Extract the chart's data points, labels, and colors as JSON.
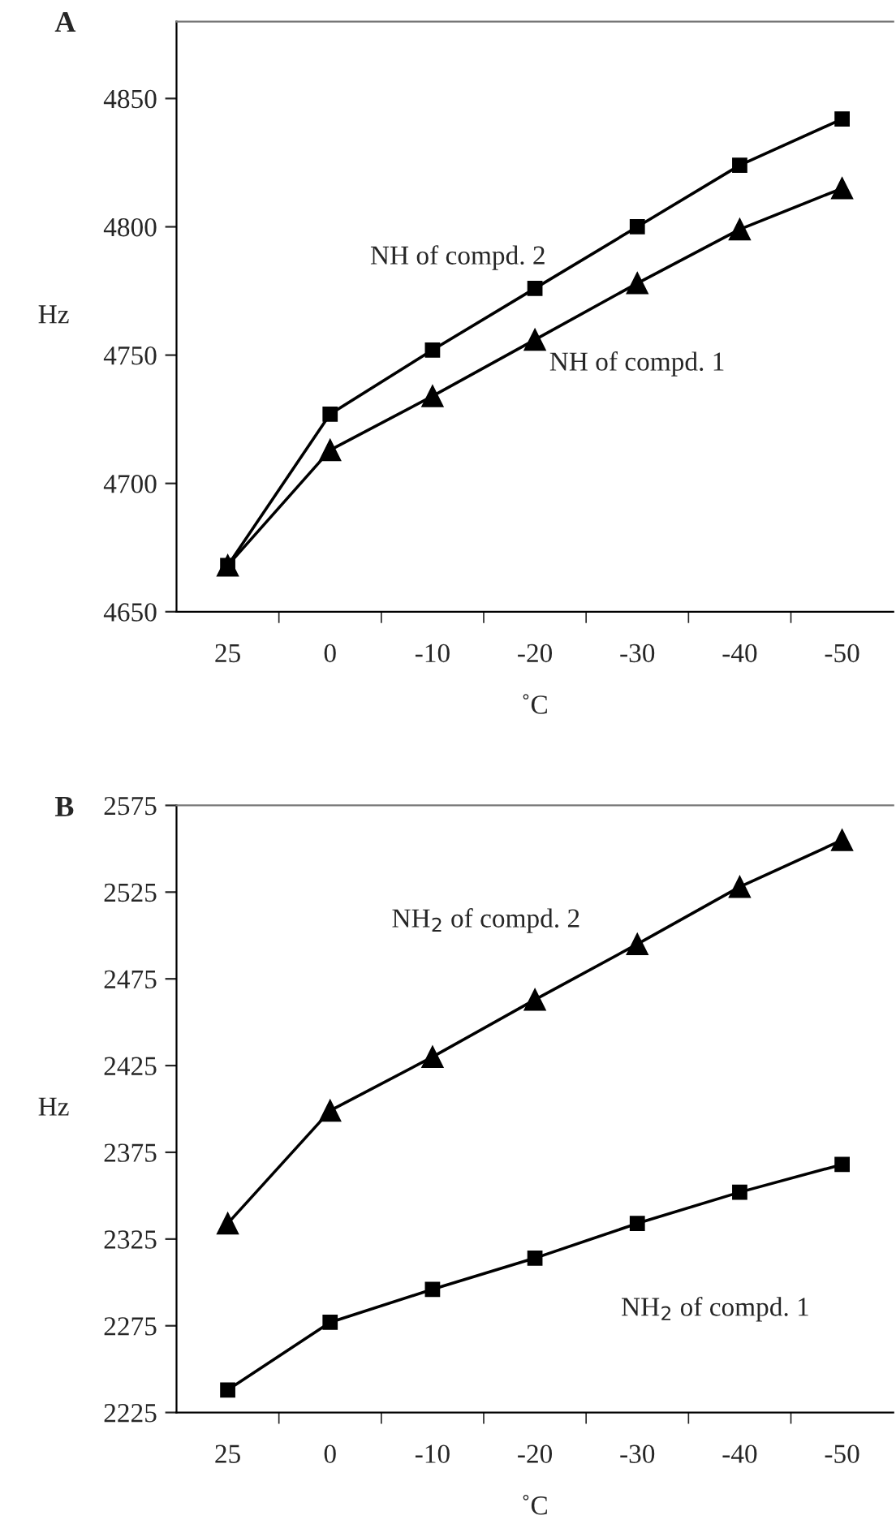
{
  "chart_data": [
    {
      "type": "line",
      "title": "A",
      "xlabel": "˚C",
      "ylabel": "Hz",
      "categories": [
        "25",
        "0",
        "-10",
        "-20",
        "-30",
        "-40",
        "-50"
      ],
      "ylim": [
        4650,
        4880
      ],
      "yticks": [
        4650,
        4700,
        4750,
        4800,
        4850
      ],
      "grid": false,
      "legend": false,
      "line_style": "solid",
      "series": [
        {
          "name": "NH of compd. 2",
          "color": "#000000",
          "marker": "square",
          "values": [
            4668,
            4727,
            4752,
            4776,
            4800,
            4824,
            4842
          ]
        },
        {
          "name": "NH of compd. 1",
          "color": "#000000",
          "marker": "triangle",
          "values": [
            4668,
            4713,
            4734,
            4756,
            4778,
            4799,
            4815
          ]
        }
      ]
    },
    {
      "type": "line",
      "title": "B",
      "xlabel": "˚C",
      "ylabel": "Hz",
      "categories": [
        "25",
        "0",
        "-10",
        "-20",
        "-30",
        "-40",
        "-50"
      ],
      "ylim": [
        2225,
        2575
      ],
      "yticks": [
        2225,
        2275,
        2325,
        2375,
        2425,
        2475,
        2525,
        2575
      ],
      "grid": false,
      "legend": false,
      "line_style": "solid",
      "series": [
        {
          "name": "NH$_{2}$ of compd. 2",
          "color": "#000000",
          "marker": "triangle",
          "values": [
            2334,
            2399,
            2430,
            2463,
            2495,
            2528,
            2555
          ]
        },
        {
          "name": "NH$_{2}$ of compd. 1",
          "color": "#000000",
          "marker": "square",
          "values": [
            2238,
            2277,
            2296,
            2314,
            2334,
            2352,
            2368
          ]
        }
      ]
    }
  ]
}
